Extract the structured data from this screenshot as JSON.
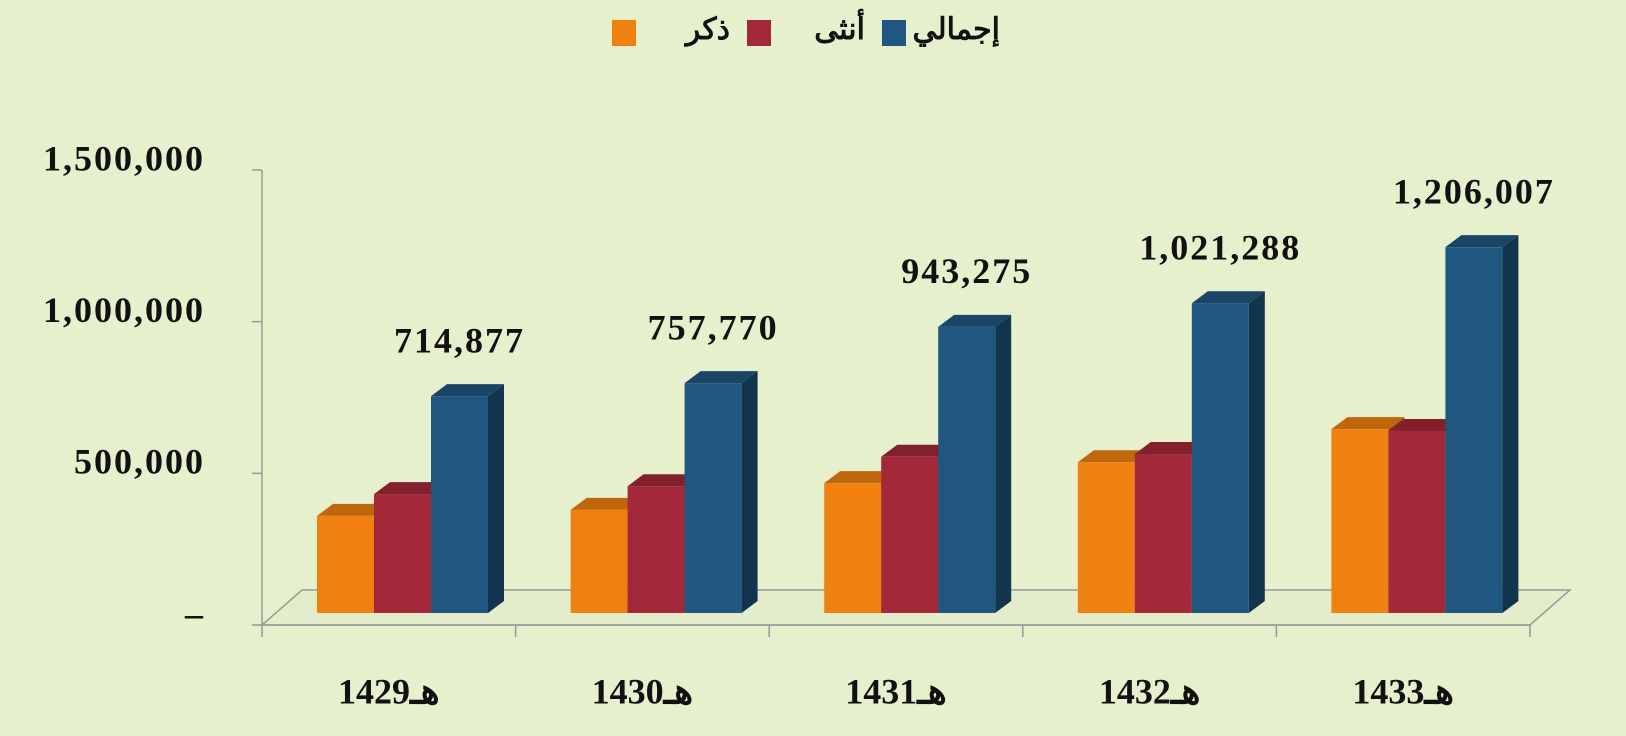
{
  "chart_data": {
    "type": "bar3d",
    "categories": [
      "1429هـ",
      "1430هـ",
      "1431هـ",
      "1432هـ",
      "1433هـ"
    ],
    "series": [
      {
        "name": "ذكر",
        "color": "#f08010",
        "values": [
          320000,
          340000,
          428000,
          497000,
          606000
        ]
      },
      {
        "name": "أنثى",
        "color": "#a3283a",
        "values": [
          392000,
          418000,
          515000,
          524000,
          600000
        ]
      },
      {
        "name": "إجمالي",
        "color": "#1f5780",
        "values": [
          714877,
          757770,
          943275,
          1021288,
          1206007
        ],
        "value_labels": [
          "714,877",
          "757,770",
          "943,275",
          "1,021,288",
          "1,206,007"
        ]
      }
    ],
    "ylim": [
      0,
      1500000
    ],
    "yticks": [
      {
        "value": 0,
        "label": "–"
      },
      {
        "value": 500000,
        "label": "500,000"
      },
      {
        "value": 1000000,
        "label": "1,000,000"
      },
      {
        "value": 1500000,
        "label": "1,500,000"
      }
    ],
    "legend": "top"
  }
}
